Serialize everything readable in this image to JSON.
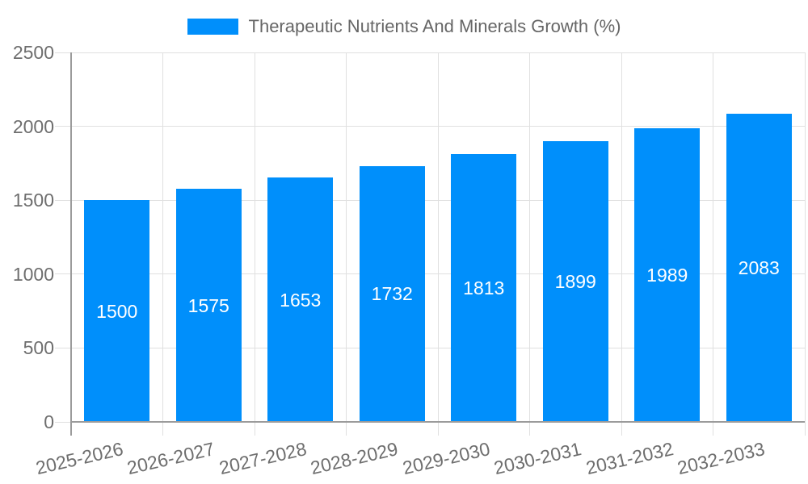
{
  "legend": {
    "label": "Therapeutic Nutrients And Minerals Growth (%)",
    "swatch_color": "#008FFB"
  },
  "chart_data": {
    "type": "bar",
    "title": "Therapeutic Nutrients And Minerals Growth (%)",
    "series_name": "Therapeutic Nutrients And Minerals Growth (%)",
    "categories": [
      "2025-2026",
      "2026-2027",
      "2027-2028",
      "2028-2029",
      "2029-2030",
      "2030-2031",
      "2031-2032",
      "2032-2033"
    ],
    "values": [
      1500,
      1575,
      1653,
      1732,
      1813,
      1899,
      1989,
      2083
    ],
    "bar_labels": [
      "1500",
      "1575",
      "1653",
      "1732",
      "1813",
      "1899",
      "1989",
      "2083"
    ],
    "xlabel": "",
    "ylabel": "",
    "ylim": [
      0,
      2500
    ],
    "yticks": [
      0,
      500,
      1000,
      1500,
      2000,
      2500
    ],
    "ytick_labels": [
      "0",
      "500",
      "1000",
      "1500",
      "2000",
      "2500"
    ],
    "grid": true,
    "legend_position": "top",
    "x_tick_rotation_deg": -13
  },
  "colors": {
    "bar": "#008FFB",
    "bar_label_text": "#ffffff",
    "grid_line": "#e0e0e0",
    "axis_line": "#9b9b9b",
    "tick_text": "#6e6e6e",
    "legend_text": "#666666",
    "background": "#ffffff"
  }
}
